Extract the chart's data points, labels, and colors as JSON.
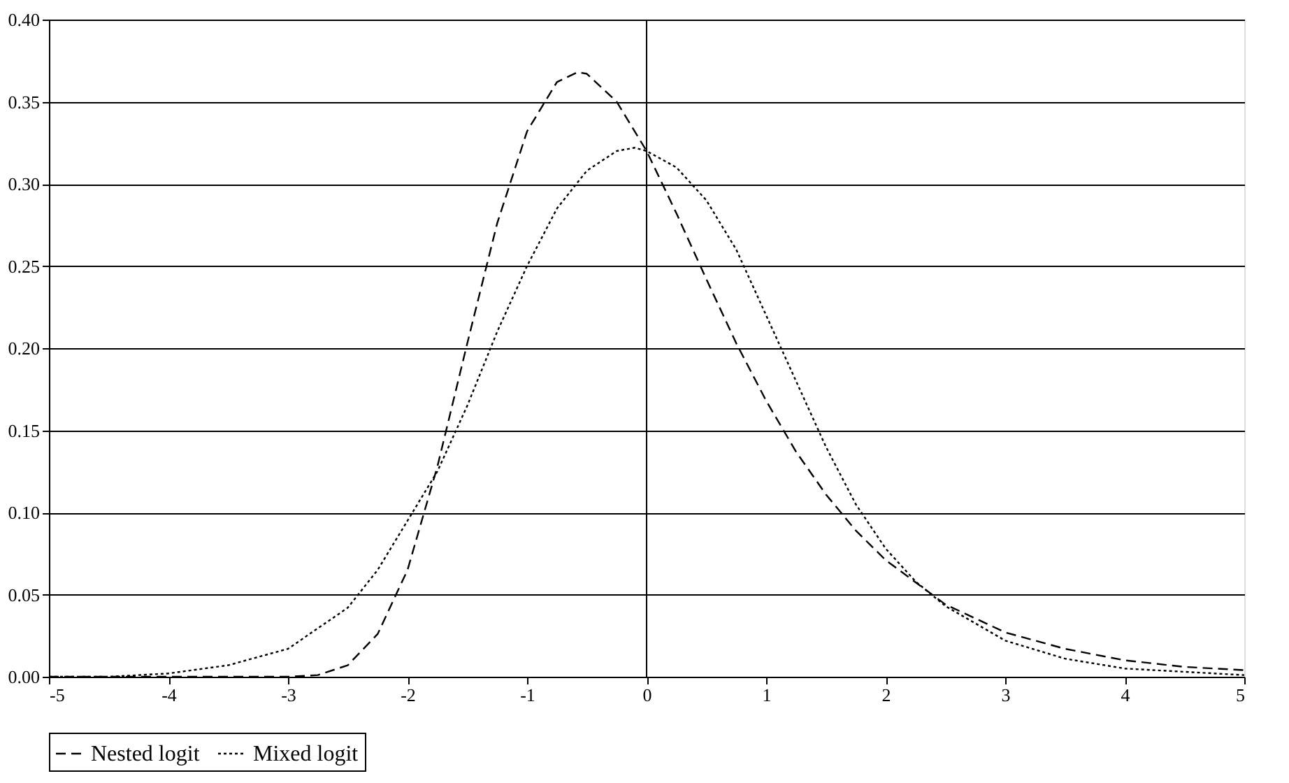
{
  "chart_data": {
    "type": "line",
    "xlim": [
      -5,
      5
    ],
    "ylim": [
      0,
      0.4
    ],
    "xticks": [
      -5,
      -4,
      -3,
      -2,
      -1,
      0,
      1,
      2,
      3,
      4,
      5
    ],
    "yticks": [
      {
        "value": 0,
        "label": "0.00"
      },
      {
        "value": 0.05,
        "label": "0.05"
      },
      {
        "value": 0.1,
        "label": "0.10"
      },
      {
        "value": 0.15,
        "label": "0.15"
      },
      {
        "value": 0.2,
        "label": "0.20"
      },
      {
        "value": 0.25,
        "label": "0.25"
      },
      {
        "value": 0.3,
        "label": "0.30"
      },
      {
        "value": 0.35,
        "label": "0.35"
      },
      {
        "value": 0.4,
        "label": "0.40"
      }
    ],
    "grid": "y",
    "legend": "bottom",
    "marker": "none",
    "ref_lines": [
      {
        "axis": "x",
        "value": 0,
        "color": "#000000",
        "line_style": "solid"
      }
    ],
    "series": [
      {
        "name": "Nested logit",
        "color": "#000000",
        "line_style": "dashed",
        "x": [
          -5,
          -4,
          -3.5,
          -3,
          -2.75,
          -2.5,
          -2.25,
          -2,
          -1.75,
          -1.5,
          -1.25,
          -1,
          -0.75,
          -0.577,
          -0.5,
          -0.25,
          0,
          0.25,
          0.5,
          0.75,
          1,
          1.25,
          1.5,
          1.75,
          2,
          2.5,
          3,
          3.5,
          4,
          4.5,
          5
        ],
        "values": [
          0,
          0,
          0,
          0,
          0.001,
          0.007,
          0.026,
          0.065,
          0.128,
          0.203,
          0.276,
          0.332,
          0.362,
          0.368,
          0.367,
          0.35,
          0.32,
          0.282,
          0.242,
          0.203,
          0.168,
          0.137,
          0.111,
          0.089,
          0.071,
          0.044,
          0.027,
          0.017,
          0.01,
          0.006,
          0.004
        ]
      },
      {
        "name": "Mixed logit",
        "color": "#000000",
        "line_style": "dotted",
        "x": [
          -5,
          -4.5,
          -4,
          -3.5,
          -3,
          -2.5,
          -2.25,
          -2,
          -1.75,
          -1.5,
          -1.25,
          -1,
          -0.75,
          -0.5,
          -0.25,
          -0.1,
          0,
          0.25,
          0.5,
          0.75,
          1,
          1.25,
          1.5,
          1.75,
          2,
          2.25,
          2.5,
          3,
          3.5,
          4,
          4.5,
          5
        ],
        "values": [
          0,
          0,
          0.002,
          0.007,
          0.017,
          0.042,
          0.065,
          0.095,
          0.125,
          0.165,
          0.21,
          0.25,
          0.285,
          0.308,
          0.32,
          0.322,
          0.32,
          0.31,
          0.29,
          0.26,
          0.22,
          0.18,
          0.14,
          0.105,
          0.078,
          0.058,
          0.043,
          0.022,
          0.011,
          0.005,
          0.003,
          0.001
        ]
      }
    ]
  }
}
